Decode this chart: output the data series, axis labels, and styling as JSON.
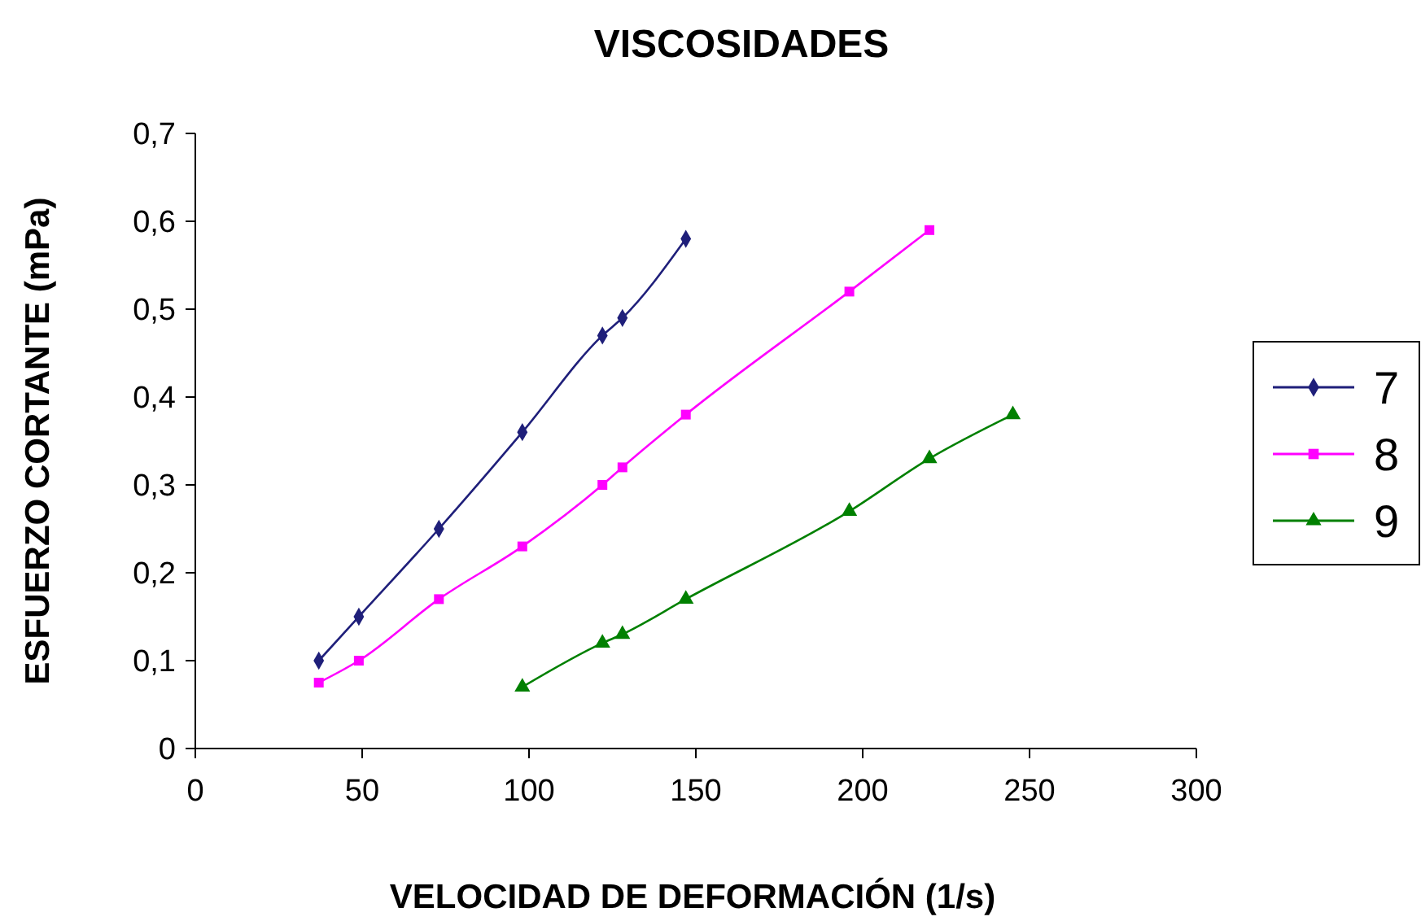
{
  "chart_data": {
    "type": "line",
    "title": "VISCOSIDADES",
    "xlabel": "VELOCIDAD DE DEFORMACIÓN (1/s)",
    "ylabel": "ESFUERZO CORTANTE (mPa)",
    "xlim": [
      0,
      300
    ],
    "xticks": [
      0,
      50,
      100,
      150,
      200,
      250,
      300
    ],
    "ylim": [
      0,
      0.7
    ],
    "yticks": [
      {
        "value": 0,
        "label": "0"
      },
      {
        "value": 0.1,
        "label": "0,1"
      },
      {
        "value": 0.2,
        "label": "0,2"
      },
      {
        "value": 0.3,
        "label": "0,3"
      },
      {
        "value": 0.4,
        "label": "0,4"
      },
      {
        "value": 0.5,
        "label": "0,5"
      },
      {
        "value": 0.6,
        "label": "0,6"
      },
      {
        "value": 0.7,
        "label": "0,7"
      }
    ],
    "grid": false,
    "legend": "right",
    "line_style": "solid",
    "series": [
      {
        "name": "7",
        "color": "#1f1f7a",
        "marker": "diamond",
        "x": [
          37,
          49,
          73,
          98,
          122,
          128,
          147
        ],
        "values": [
          0.1,
          0.15,
          0.25,
          0.36,
          0.47,
          0.49,
          0.58
        ]
      },
      {
        "name": "8",
        "color": "#ff00ff",
        "marker": "square",
        "x": [
          37,
          49,
          73,
          98,
          122,
          128,
          147,
          196,
          220
        ],
        "values": [
          0.075,
          0.1,
          0.17,
          0.23,
          0.3,
          0.32,
          0.38,
          0.52,
          0.59
        ]
      },
      {
        "name": "9",
        "color": "#008000",
        "marker": "triangle",
        "x": [
          98,
          122,
          128,
          147,
          196,
          220,
          245
        ],
        "values": [
          0.07,
          0.12,
          0.13,
          0.17,
          0.27,
          0.33,
          0.38
        ]
      }
    ]
  }
}
